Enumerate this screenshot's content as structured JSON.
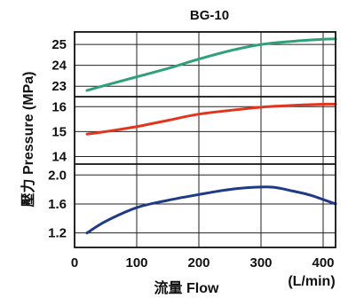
{
  "chart_data": {
    "type": "line",
    "title": "BG-10",
    "xlabel": "流量 Flow",
    "x_unit": "(L/min)",
    "ylabel": "壓力 Pressure (MPa)",
    "xlim": [
      0,
      420
    ],
    "x_ticks": [
      "0",
      "100",
      "200",
      "300",
      "400"
    ],
    "grid": true,
    "legend": "none",
    "panels": [
      {
        "ylim": [
          22.5,
          25.6
        ],
        "y_ticks": [
          "25",
          "24",
          "23"
        ],
        "series": [
          {
            "color": "#2fa07a",
            "x": [
              20,
              50,
              100,
              150,
              200,
              250,
              300,
              350,
              400,
              420
            ],
            "y": [
              22.8,
              23.05,
              23.45,
              23.85,
              24.3,
              24.7,
              25.0,
              25.15,
              25.25,
              25.27
            ]
          }
        ]
      },
      {
        "ylim": [
          13.7,
          16.4
        ],
        "y_ticks": [
          "16",
          "15",
          "14"
        ],
        "series": [
          {
            "color": "#e2351f",
            "x": [
              20,
              50,
              100,
              150,
              200,
              250,
              300,
              350,
              400,
              420
            ],
            "y": [
              14.9,
              15.0,
              15.2,
              15.45,
              15.7,
              15.85,
              15.98,
              16.05,
              16.1,
              16.1
            ]
          }
        ]
      },
      {
        "ylim": [
          1.0,
          2.15
        ],
        "y_ticks": [
          "2.0",
          "1.6",
          "1.2"
        ],
        "series": [
          {
            "color": "#1f3a86",
            "x": [
              20,
              50,
              100,
              150,
              200,
              250,
              290,
              320,
              350,
              380,
              420
            ],
            "y": [
              1.2,
              1.36,
              1.55,
              1.65,
              1.73,
              1.8,
              1.83,
              1.83,
              1.78,
              1.72,
              1.6
            ]
          }
        ]
      }
    ]
  }
}
